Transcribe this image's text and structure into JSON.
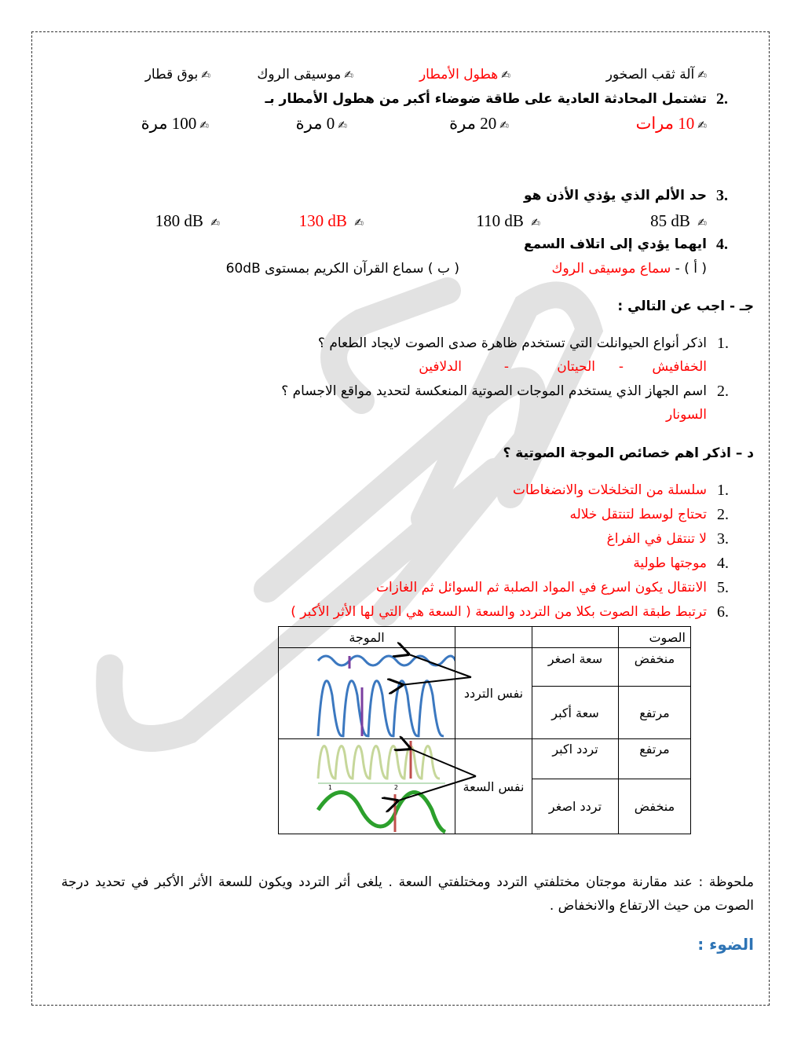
{
  "q1_options": [
    {
      "text": "آلة ثقب الصخور",
      "correct": false
    },
    {
      "text": "هطول الأمطار",
      "correct": true
    },
    {
      "text": "موسيقى الروك",
      "correct": false
    },
    {
      "text": "بوق قطار",
      "correct": false
    }
  ],
  "q2": {
    "number": "2.",
    "question": "تشتمل المحادثة العادية على طاقة ضوضاء أكبر من هطول الأمطار بـ",
    "options": [
      {
        "text": "10 مرات",
        "correct": true
      },
      {
        "text": "20 مرة",
        "correct": false
      },
      {
        "text": "0 مرة",
        "correct": false
      },
      {
        "text": "100 مرة",
        "correct": false
      }
    ]
  },
  "q3": {
    "number": "3.",
    "question": "حد الألم الذي يؤذي الأذن هو",
    "options": [
      {
        "text": "85 dB",
        "correct": false
      },
      {
        "text": "110 dB",
        "correct": false
      },
      {
        "text": "130 dB",
        "correct": true
      },
      {
        "text": "180 dB",
        "correct": false
      }
    ]
  },
  "q4": {
    "number": "4.",
    "question": "ايهما يؤدي إلى اتلاف السمع",
    "option_a_label": "( أ ) -",
    "option_a": "سماع موسيقى الروك",
    "option_b": "( ب ) سماع القرآن الكريم بمستوى 60dB"
  },
  "section_c": {
    "heading": "جـ - اجب عن التالي :",
    "q1": {
      "number": "1.",
      "question": "اذكر أنواع الحيوانلت التي تستخدم ظاهرة صدى الصوت لايجاد الطعام ؟",
      "answers": [
        "الخفافيش",
        "-",
        "الحيتان",
        "-",
        "الدلافين"
      ]
    },
    "q2": {
      "number": "2.",
      "question": "اسم الجهاز الذي يستخدم الموجات الصوتية المنعكسة لتحديد مواقع الاجسام ؟",
      "answer": "السونار"
    }
  },
  "section_d": {
    "heading": "د – اذكر اهم خصائص الموجة الصوتية ؟",
    "items": [
      {
        "number": "1.",
        "text": "سلسلة من التخلخلات والانضغاطات"
      },
      {
        "number": "2.",
        "text": "تحتاج لوسط لتنتقل خلاله"
      },
      {
        "number": "3.",
        "text": "لا تنتقل في الفراغ"
      },
      {
        "number": "4.",
        "text": "موجتها طولية"
      },
      {
        "number": "5.",
        "text": "الانتقال يكون اسرع في المواد الصلبة ثم السوائل ثم الغازات"
      },
      {
        "number": "6.",
        "text": "ترتبط طبقة الصوت بكلا من التردد والسعة ( السعة هي التي لها الأثر الأكبر )"
      }
    ]
  },
  "table": {
    "header_sound": "الصوت",
    "header_wave": "الموجة",
    "same_frequency": "نفس التردد",
    "same_amplitude": "نفس السعة",
    "rows": [
      {
        "sound": "منخفض",
        "property": "سعة اصغر"
      },
      {
        "sound": "مرتفع",
        "property": "سعة أكبر"
      },
      {
        "sound": "مرتفع",
        "property": "تردد اكبر"
      },
      {
        "sound": "منخفض",
        "property": "تردد اصغر"
      }
    ],
    "wave_tick_labels": [
      "1",
      "2"
    ]
  },
  "note": "ملحوظة : عند مقارنة موجتان مختلفتي التردد ومختلفتي السعة . يلغى أثر التردد ويكون للسعة الأثر الأكبر في تحديد درجة الصوت من حيث الارتفاع والانخفاض .",
  "next_heading": "الضوء :",
  "icons": {
    "option_marker": "writing-hand-icon"
  },
  "colors": {
    "answer": "#ff0000",
    "heading_blue": "#2e74b5"
  }
}
